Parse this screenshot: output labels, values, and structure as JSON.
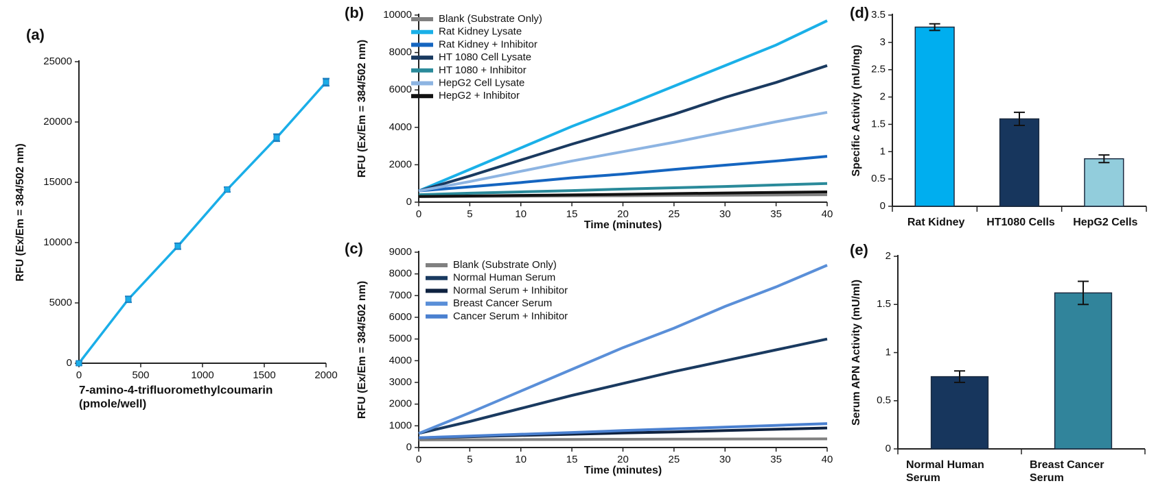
{
  "chart_data": [
    {
      "type": "line",
      "panel_label": "(a)",
      "x": [
        0,
        400,
        800,
        1200,
        1600,
        2000
      ],
      "values": [
        0,
        5300,
        9700,
        14400,
        18700,
        23300
      ],
      "errors": [
        150,
        250,
        250,
        200,
        300,
        300
      ],
      "color": "#1aaee8",
      "xlim": [
        0,
        2000
      ],
      "xticks": [
        0,
        500,
        1000,
        1500,
        2000
      ],
      "ylim": [
        0,
        25000
      ],
      "yticks": [
        0,
        5000,
        10000,
        15000,
        20000,
        25000
      ],
      "xlabel": [
        "7-amino-4-trifluoromethylcoumarin",
        "(pmole/well)"
      ],
      "ylabel": "RFU (Ex/Em = 384/502 nm)"
    },
    {
      "type": "multiline",
      "panel_label": "(b)",
      "x": [
        0,
        5,
        10,
        15,
        20,
        25,
        30,
        35,
        40
      ],
      "series": [
        {
          "name": "Blank (Substrate Only)",
          "color": "#808080",
          "values": [
            300,
            310,
            320,
            335,
            345,
            360,
            370,
            385,
            400
          ]
        },
        {
          "name": "Rat Kidney Lysate",
          "color": "#1ab0e8",
          "values": [
            600,
            1750,
            2900,
            4050,
            5100,
            6200,
            7300,
            8400,
            9700
          ]
        },
        {
          "name": "Rat Kidney + Inhibitor",
          "color": "#1565c0",
          "values": [
            600,
            820,
            1050,
            1300,
            1500,
            1750,
            1980,
            2200,
            2450
          ]
        },
        {
          "name": "HT 1080 Cell Lysate",
          "color": "#1a3a60",
          "values": [
            600,
            1400,
            2250,
            3100,
            3900,
            4700,
            5600,
            6400,
            7300
          ]
        },
        {
          "name": "HT 1080 + Inhibitor",
          "color": "#2a8a9a",
          "values": [
            400,
            480,
            550,
            620,
            700,
            770,
            840,
            920,
            1000
          ]
        },
        {
          "name": "HepG2 Cell Lysate",
          "color": "#8db4e2",
          "values": [
            600,
            1100,
            1650,
            2200,
            2700,
            3200,
            3750,
            4300,
            4800
          ]
        },
        {
          "name": "HepG2 + Inhibitor",
          "color": "#111111",
          "values": [
            300,
            330,
            360,
            390,
            420,
            460,
            490,
            520,
            550
          ]
        }
      ],
      "xlim": [
        0,
        40
      ],
      "xticks": [
        0,
        5,
        10,
        15,
        20,
        25,
        30,
        35,
        40
      ],
      "ylim": [
        0,
        10000
      ],
      "yticks": [
        0,
        2000,
        4000,
        6000,
        8000,
        10000
      ],
      "xlabel": "Time (minutes)",
      "ylabel": "RFU (Ex/Em = 384/502 nm)"
    },
    {
      "type": "multiline",
      "panel_label": "(c)",
      "x": [
        0,
        5,
        10,
        15,
        20,
        25,
        30,
        35,
        40
      ],
      "series": [
        {
          "name": "Blank (Substrate Only)",
          "color": "#808080",
          "values": [
            350,
            360,
            365,
            370,
            380,
            385,
            390,
            395,
            400
          ]
        },
        {
          "name": "Normal Human Serum",
          "color": "#1a3a60",
          "values": [
            650,
            1200,
            1800,
            2400,
            2950,
            3500,
            4000,
            4500,
            5000
          ]
        },
        {
          "name": "Normal Serum + Inhibitor",
          "color": "#0f2240",
          "values": [
            450,
            500,
            560,
            610,
            670,
            720,
            780,
            840,
            900
          ]
        },
        {
          "name": "Breast Cancer Serum",
          "color": "#5a8fd8",
          "values": [
            650,
            1600,
            2600,
            3600,
            4600,
            5500,
            6500,
            7400,
            8400
          ]
        },
        {
          "name": "Cancer Serum + Inhibitor",
          "color": "#4a80d0",
          "values": [
            450,
            530,
            610,
            690,
            780,
            860,
            940,
            1020,
            1100
          ]
        }
      ],
      "xlim": [
        0,
        40
      ],
      "xticks": [
        0,
        5,
        10,
        15,
        20,
        25,
        30,
        35,
        40
      ],
      "ylim": [
        0,
        9000
      ],
      "yticks": [
        0,
        1000,
        2000,
        3000,
        4000,
        5000,
        6000,
        7000,
        8000,
        9000
      ],
      "xlabel": "Time (minutes)",
      "ylabel": "RFU (Ex/Em = 384/502 nm)"
    },
    {
      "type": "bar",
      "panel_label": "(d)",
      "categories": [
        "Rat Kidney",
        "HT1080 Cells",
        "HepG2 Cells"
      ],
      "values": [
        3.28,
        1.6,
        0.87
      ],
      "errors": [
        0.06,
        0.12,
        0.07
      ],
      "colors": [
        "#00aeef",
        "#17365d",
        "#92cddc"
      ],
      "ylim": [
        0,
        3.5
      ],
      "yticks": [
        0,
        0.5,
        1,
        1.5,
        2,
        2.5,
        3,
        3.5
      ],
      "ylabel": "Specific Activity (mU/mg)"
    },
    {
      "type": "bar",
      "panel_label": "(e)",
      "categories": [
        "Normal Human Serum",
        "Breast Cancer Serum"
      ],
      "values": [
        0.75,
        1.62
      ],
      "errors": [
        0.06,
        0.12
      ],
      "colors": [
        "#17365d",
        "#31849b"
      ],
      "ylim": [
        0,
        2
      ],
      "yticks": [
        0,
        0.5,
        1,
        1.5,
        2
      ],
      "ylabel": "Serum APN Activity (mU/ml)"
    }
  ]
}
